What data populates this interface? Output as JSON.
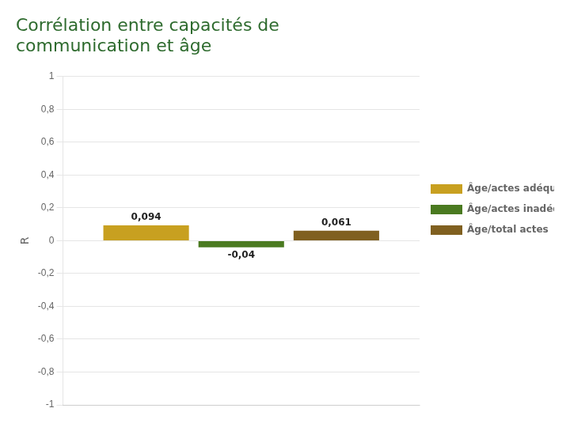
{
  "chart_data": {
    "type": "bar",
    "title": [
      "Corrélation entre capacités de",
      "communication et âge"
    ],
    "title_color": "#2E6B2E",
    "ylabel": "R",
    "categories": [
      null
    ],
    "series": [
      {
        "name": "Âge/actes adéquats",
        "color": "#C8A020",
        "values": [
          0.094
        ],
        "value_labels": [
          "0,094"
        ]
      },
      {
        "name": "Âge/actes inadéquats",
        "color": "#4A7A20",
        "values": [
          -0.04
        ],
        "value_labels": [
          "-0,04"
        ]
      },
      {
        "name": "Âge/total actes",
        "color": "#806020",
        "values": [
          0.061
        ],
        "value_labels": [
          "0,061"
        ]
      }
    ],
    "ylim": [
      -1,
      1
    ],
    "yticks": [
      -1,
      {
        "value": -0.8,
        "label": "-0,8"
      },
      {
        "value": -0.6,
        "label": "-0,6"
      },
      {
        "value": -0.4,
        "label": "-0,4"
      },
      {
        "value": -0.2,
        "label": "-0,2"
      },
      0,
      {
        "value": 0.2,
        "label": "0,2"
      },
      {
        "value": 0.4,
        "label": "0,4"
      },
      {
        "value": 0.6,
        "label": "0,6"
      },
      {
        "value": 0.8,
        "label": "0,8"
      },
      1
    ],
    "grid": true,
    "legend": "right",
    "data_labels": true,
    "tick_labels": "y"
  }
}
